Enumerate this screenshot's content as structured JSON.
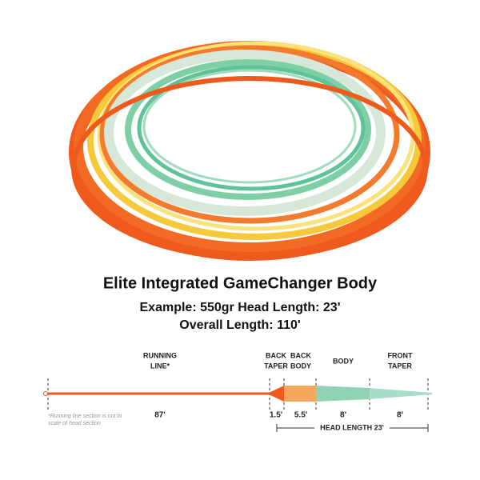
{
  "header": {
    "title": "Elite Integrated GameChanger Body",
    "subtitle_lines": [
      "Example: 550gr Head Length: 23'",
      "Overall Length: 110'"
    ]
  },
  "diagram": {
    "sections": [
      {
        "label_lines": [
          "RUNNING",
          "LINE*"
        ],
        "length": "87'"
      },
      {
        "label_lines": [
          "BACK",
          "TAPER"
        ],
        "length": "1.5'"
      },
      {
        "label_lines": [
          "BACK",
          "BODY"
        ],
        "length": "5.5'"
      },
      {
        "label_lines": [
          "BODY"
        ],
        "length": "8'"
      },
      {
        "label_lines": [
          "FRONT",
          "TAPER"
        ],
        "length": "8'"
      }
    ],
    "footnote_lines": [
      "*Running line section is not to",
      "scale of head section"
    ],
    "head_length": "HEAD LENGTH 23'"
  }
}
